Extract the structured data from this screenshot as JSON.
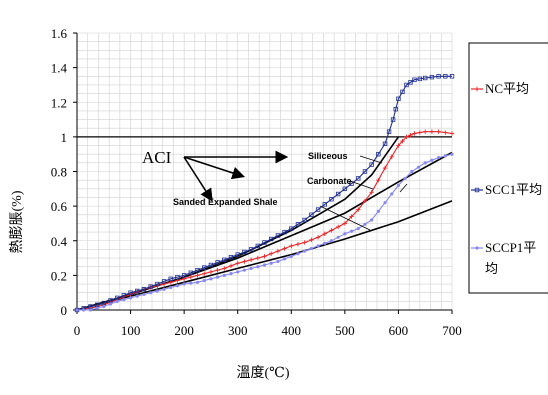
{
  "chart_data": {
    "type": "line",
    "xlabel": "溫度(℃)",
    "ylabel": "熱膨脹(%)",
    "xlim": [
      0,
      700
    ],
    "ylim": [
      0,
      1.6
    ],
    "xticks": [
      0,
      100,
      200,
      300,
      400,
      500,
      600,
      700
    ],
    "yticks": [
      0,
      0.2,
      0.4,
      0.6,
      0.8,
      1,
      1.2,
      1.4,
      1.6
    ],
    "grid": true,
    "legend_position": "right",
    "series": [
      {
        "name": "NC平均",
        "color": "#e8262a",
        "marker": "plus",
        "x": [
          0,
          25,
          50,
          75,
          100,
          125,
          150,
          175,
          200,
          225,
          250,
          275,
          300,
          325,
          350,
          375,
          400,
          425,
          450,
          475,
          500,
          525,
          550,
          575,
          600,
          615,
          630,
          650,
          675,
          700
        ],
        "y": [
          0,
          0.01,
          0.03,
          0.06,
          0.09,
          0.12,
          0.14,
          0.16,
          0.18,
          0.2,
          0.22,
          0.24,
          0.27,
          0.29,
          0.31,
          0.34,
          0.37,
          0.39,
          0.42,
          0.46,
          0.5,
          0.58,
          0.68,
          0.82,
          0.95,
          1.0,
          1.02,
          1.03,
          1.03,
          1.02
        ]
      },
      {
        "name": "SCC1平均",
        "color": "#1f2f8f",
        "marker": "square",
        "x": [
          0,
          25,
          50,
          75,
          100,
          125,
          150,
          175,
          200,
          225,
          250,
          275,
          300,
          325,
          350,
          375,
          400,
          425,
          450,
          475,
          500,
          525,
          550,
          575,
          590,
          600,
          615,
          630,
          650,
          675,
          700
        ],
        "y": [
          0,
          0.02,
          0.04,
          0.07,
          0.1,
          0.12,
          0.15,
          0.18,
          0.2,
          0.23,
          0.26,
          0.29,
          0.32,
          0.35,
          0.39,
          0.43,
          0.47,
          0.52,
          0.58,
          0.64,
          0.7,
          0.76,
          0.84,
          0.96,
          1.1,
          1.22,
          1.3,
          1.33,
          1.34,
          1.35,
          1.35
        ]
      },
      {
        "name": "SCCP1平均",
        "color": "#8888ee",
        "marker": "dot",
        "x": [
          0,
          25,
          50,
          75,
          100,
          125,
          150,
          175,
          200,
          225,
          250,
          275,
          300,
          325,
          350,
          375,
          400,
          425,
          450,
          475,
          500,
          525,
          550,
          575,
          600,
          625,
          650,
          675,
          700
        ],
        "y": [
          0,
          0.0,
          0.02,
          0.05,
          0.07,
          0.09,
          0.11,
          0.13,
          0.15,
          0.16,
          0.18,
          0.2,
          0.22,
          0.24,
          0.26,
          0.28,
          0.31,
          0.34,
          0.37,
          0.4,
          0.44,
          0.47,
          0.52,
          0.62,
          0.72,
          0.8,
          0.85,
          0.88,
          0.9
        ]
      }
    ],
    "reference_curves": [
      {
        "label": "Siliceous",
        "color": "#000000",
        "x": [
          0,
          100,
          200,
          300,
          400,
          500,
          550,
          600
        ],
        "y": [
          0,
          0.09,
          0.19,
          0.31,
          0.46,
          0.64,
          0.78,
          1.0
        ]
      },
      {
        "label": "Carbonate",
        "color": "#000000",
        "x": [
          0,
          100,
          200,
          300,
          400,
          500,
          600,
          700
        ],
        "y": [
          0,
          0.09,
          0.19,
          0.3,
          0.43,
          0.56,
          0.74,
          0.91
        ]
      },
      {
        "label": "Sanded Expanded Shale",
        "color": "#000000",
        "x": [
          0,
          100,
          200,
          300,
          400,
          500,
          600,
          700
        ],
        "y": [
          0,
          0.08,
          0.16,
          0.24,
          0.32,
          0.41,
          0.51,
          0.63
        ]
      }
    ],
    "annotations": {
      "aci_label": "ACI",
      "siliceous": "Siliceous",
      "carbonate": "Carbonate",
      "shale": "Sanded Expanded Shale"
    }
  }
}
